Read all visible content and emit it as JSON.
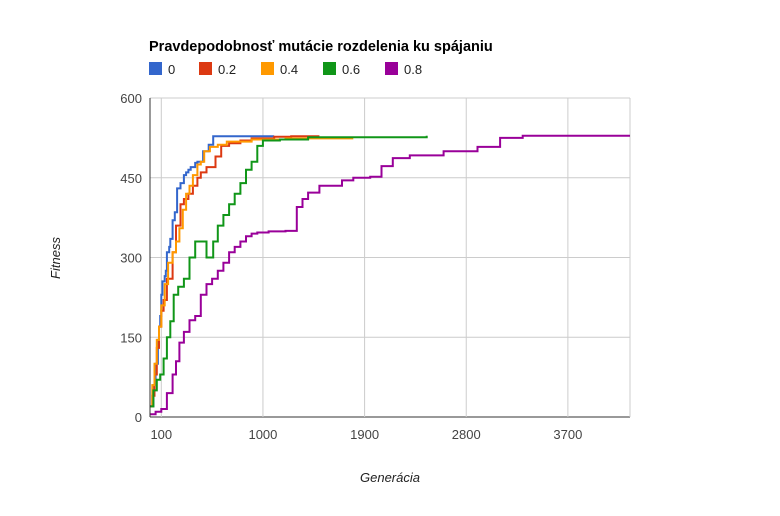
{
  "chart_data": {
    "type": "line",
    "step": true,
    "title": "Pravdepodobnosť mutácie rozdelenia ku spájaniu",
    "xlabel": "Generácia",
    "ylabel": "Fitness",
    "xlim": [
      0,
      4250
    ],
    "ylim": [
      0,
      600
    ],
    "xticks": [
      100,
      1000,
      1900,
      2800,
      3700
    ],
    "xtick_labels": [
      "100",
      "1000",
      "1900",
      "2800",
      "3700"
    ],
    "yticks": [
      0,
      150,
      300,
      450,
      600
    ],
    "ytick_labels": [
      "0",
      "150",
      "300",
      "450",
      "600"
    ],
    "grid": true,
    "legend_position": "top",
    "series": [
      {
        "name": "0",
        "color": "#3366cc",
        "x": [
          0,
          30,
          50,
          70,
          80,
          90,
          100,
          110,
          130,
          140,
          150,
          170,
          180,
          200,
          220,
          240,
          270,
          300,
          320,
          340,
          360,
          400,
          420,
          470,
          520,
          560,
          1100
        ],
        "y": [
          20,
          60,
          100,
          145,
          170,
          190,
          230,
          255,
          265,
          275,
          310,
          320,
          335,
          370,
          385,
          430,
          440,
          455,
          460,
          465,
          470,
          478,
          480,
          500,
          512,
          528,
          528
        ]
      },
      {
        "name": "0.2",
        "color": "#dc3912",
        "x": [
          0,
          20,
          40,
          60,
          80,
          100,
          120,
          150,
          180,
          200,
          230,
          270,
          300,
          340,
          380,
          420,
          450,
          500,
          580,
          630,
          700,
          800,
          900,
          1100,
          1250,
          1500
        ],
        "y": [
          20,
          40,
          80,
          130,
          170,
          200,
          220,
          260,
          260,
          310,
          360,
          400,
          410,
          420,
          435,
          450,
          460,
          470,
          490,
          510,
          515,
          520,
          524,
          527,
          528,
          528
        ]
      },
      {
        "name": "0.4",
        "color": "#ff9900",
        "x": [
          0,
          20,
          40,
          60,
          80,
          100,
          130,
          160,
          200,
          230,
          260,
          290,
          320,
          350,
          380,
          420,
          450,
          480,
          530,
          600,
          680,
          900,
          1200,
          1800
        ],
        "y": [
          20,
          60,
          100,
          145,
          170,
          210,
          250,
          290,
          310,
          330,
          355,
          390,
          420,
          435,
          455,
          475,
          480,
          500,
          508,
          512,
          518,
          522,
          524,
          524
        ]
      },
      {
        "name": "0.6",
        "color": "#109618",
        "x": [
          0,
          30,
          60,
          90,
          120,
          150,
          180,
          210,
          250,
          300,
          350,
          400,
          500,
          560,
          600,
          650,
          700,
          750,
          800,
          850,
          900,
          950,
          1000,
          1150,
          1400,
          2450
        ],
        "y": [
          20,
          50,
          70,
          80,
          110,
          150,
          180,
          230,
          245,
          260,
          300,
          330,
          300,
          330,
          360,
          380,
          400,
          420,
          440,
          465,
          480,
          510,
          520,
          522,
          526,
          529
        ]
      },
      {
        "name": "0.8",
        "color": "#990099",
        "x": [
          0,
          50,
          100,
          150,
          200,
          230,
          260,
          300,
          350,
          400,
          450,
          500,
          550,
          600,
          650,
          700,
          750,
          800,
          850,
          900,
          950,
          1050,
          1200,
          1300,
          1350,
          1400,
          1500,
          1700,
          1800,
          1950,
          2050,
          2150,
          2300,
          2600,
          2900,
          3100,
          3300,
          4250
        ],
        "y": [
          5,
          10,
          15,
          45,
          80,
          105,
          140,
          160,
          182,
          190,
          230,
          250,
          260,
          275,
          290,
          310,
          320,
          330,
          340,
          345,
          347,
          349,
          350,
          395,
          410,
          422,
          435,
          445,
          450,
          452,
          472,
          487,
          492,
          500,
          508,
          525,
          529,
          529
        ]
      }
    ]
  }
}
